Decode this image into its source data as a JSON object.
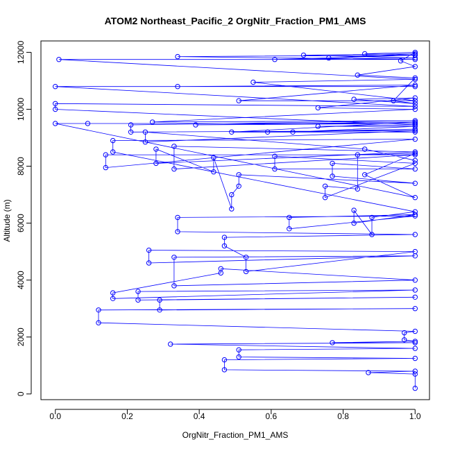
{
  "chart_data": {
    "type": "scatter",
    "title": "ATOM2 Northeast_Pacific_2 OrgNitr_Fraction_PM1_AMS",
    "xlabel": "OrgNitr_Fraction_PM1_AMS",
    "ylabel": "Altitude (m)",
    "xlim": [
      -0.04,
      1.04
    ],
    "ylim": [
      -200,
      12400
    ],
    "xticks": [
      0.0,
      0.2,
      0.4,
      0.6,
      0.8,
      1.0
    ],
    "xtick_labels": [
      "0.0",
      "0.2",
      "0.4",
      "0.6",
      "0.8",
      "1.0"
    ],
    "yticks": [
      0,
      2000,
      4000,
      6000,
      8000,
      10000,
      12000
    ],
    "ytick_labels": [
      "0",
      "2000",
      "4000",
      "6000",
      "8000",
      "10000",
      "12000"
    ],
    "grid": false,
    "legend": "none",
    "color": "#0000ff",
    "marker": "open-circle",
    "connected": true,
    "series": [
      {
        "points": [
          [
            1.0,
            200
          ],
          [
            1.0,
            700
          ],
          [
            0.87,
            750
          ],
          [
            1.0,
            800
          ],
          [
            0.47,
            850
          ],
          [
            0.47,
            1200
          ],
          [
            1.0,
            1250
          ],
          [
            0.51,
            1300
          ],
          [
            0.51,
            1550
          ],
          [
            1.0,
            1600
          ],
          [
            0.32,
            1750
          ],
          [
            1.0,
            1800
          ],
          [
            0.77,
            1800
          ],
          [
            1.0,
            1850
          ],
          [
            0.97,
            1900
          ],
          [
            0.97,
            2150
          ],
          [
            1.0,
            2200
          ],
          [
            0.12,
            2500
          ],
          [
            0.12,
            2950
          ],
          [
            1.0,
            3000
          ],
          [
            0.29,
            2950
          ],
          [
            0.29,
            3300
          ],
          [
            1.0,
            3400
          ],
          [
            0.23,
            3300
          ],
          [
            0.23,
            3600
          ],
          [
            1.0,
            3650
          ],
          [
            0.16,
            3350
          ],
          [
            0.16,
            3550
          ],
          [
            0.46,
            4250
          ],
          [
            0.46,
            4400
          ],
          [
            1.0,
            4000
          ],
          [
            0.33,
            3800
          ],
          [
            0.33,
            4800
          ],
          [
            1.0,
            4850
          ],
          [
            0.26,
            4600
          ],
          [
            0.26,
            5050
          ],
          [
            1.0,
            5000
          ],
          [
            0.53,
            4300
          ],
          [
            0.53,
            4800
          ],
          [
            0.47,
            5200
          ],
          [
            0.47,
            5500
          ],
          [
            1.0,
            5600
          ],
          [
            0.34,
            5700
          ],
          [
            0.34,
            6200
          ],
          [
            1.0,
            6250
          ],
          [
            0.65,
            5800
          ],
          [
            0.65,
            6200
          ],
          [
            1.0,
            6300
          ],
          [
            0.83,
            6000
          ],
          [
            0.83,
            6450
          ],
          [
            0.88,
            5600
          ],
          [
            0.88,
            6200
          ],
          [
            1.0,
            6400
          ],
          [
            0.16,
            8500
          ],
          [
            0.16,
            8900
          ],
          [
            1.0,
            8950
          ],
          [
            0.14,
            7950
          ],
          [
            0.14,
            8400
          ],
          [
            1.0,
            8400
          ],
          [
            0.33,
            7900
          ],
          [
            0.33,
            8700
          ],
          [
            1.0,
            8500
          ],
          [
            0.28,
            8100
          ],
          [
            0.28,
            8600
          ],
          [
            0.44,
            7800
          ],
          [
            0.44,
            8300
          ],
          [
            0.49,
            6500
          ],
          [
            0.49,
            7000
          ],
          [
            0.51,
            7300
          ],
          [
            0.51,
            7700
          ],
          [
            1.0,
            7400
          ],
          [
            0.77,
            7650
          ],
          [
            0.77,
            8100
          ],
          [
            1.0,
            7900
          ],
          [
            0.61,
            7900
          ],
          [
            0.61,
            8350
          ],
          [
            1.0,
            8100
          ],
          [
            0.75,
            6900
          ],
          [
            0.75,
            7300
          ],
          [
            0.84,
            7200
          ],
          [
            0.84,
            8400
          ],
          [
            1.0,
            8450
          ],
          [
            0.86,
            7700
          ],
          [
            1.0,
            6900
          ],
          [
            0.0,
            9500
          ],
          [
            1.0,
            9500
          ],
          [
            0.09,
            9500
          ],
          [
            1.0,
            9500
          ],
          [
            0.39,
            9450
          ],
          [
            1.0,
            9550
          ],
          [
            0.49,
            9200
          ],
          [
            1.0,
            9200
          ],
          [
            0.59,
            9200
          ],
          [
            1.0,
            9300
          ],
          [
            0.66,
            9200
          ],
          [
            1.0,
            9400
          ],
          [
            0.73,
            9400
          ],
          [
            1.0,
            9450
          ],
          [
            0.0,
            10000
          ],
          [
            0.0,
            10200
          ],
          [
            1.0,
            10100
          ],
          [
            0.0,
            10800
          ],
          [
            1.0,
            10800
          ],
          [
            0.34,
            10800
          ],
          [
            1.0,
            10850
          ],
          [
            0.51,
            10300
          ],
          [
            1.0,
            10300
          ],
          [
            0.55,
            10950
          ],
          [
            1.0,
            11050
          ],
          [
            0.01,
            11750
          ],
          [
            1.0,
            11750
          ],
          [
            0.34,
            11850
          ],
          [
            1.0,
            11900
          ],
          [
            0.61,
            11750
          ],
          [
            1.0,
            11800
          ],
          [
            0.69,
            11900
          ],
          [
            1.0,
            11950
          ],
          [
            0.76,
            11800
          ],
          [
            1.0,
            11900
          ],
          [
            0.86,
            11950
          ],
          [
            1.0,
            12000
          ],
          [
            0.96,
            11700
          ],
          [
            1.0,
            11500
          ],
          [
            0.84,
            11200
          ],
          [
            1.0,
            11100
          ],
          [
            0.94,
            10300
          ],
          [
            1.0,
            10200
          ],
          [
            0.83,
            10350
          ],
          [
            1.0,
            10400
          ],
          [
            0.73,
            10050
          ],
          [
            1.0,
            10000
          ],
          [
            0.27,
            9550
          ],
          [
            1.0,
            9600
          ],
          [
            0.21,
            9450
          ],
          [
            0.21,
            9200
          ],
          [
            1.0,
            9250
          ],
          [
            0.25,
            8850
          ],
          [
            0.25,
            9200
          ],
          [
            0.86,
            8600
          ],
          [
            1.0,
            8200
          ]
        ]
      }
    ]
  }
}
